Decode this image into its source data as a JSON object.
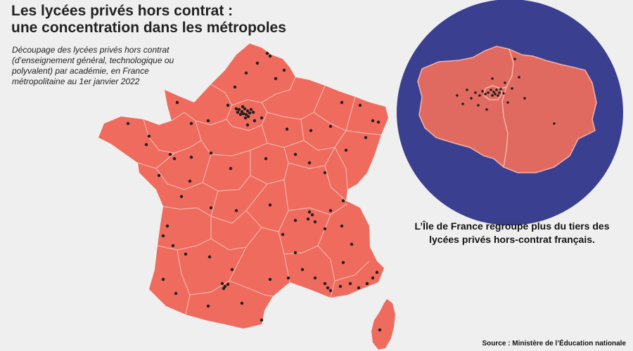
{
  "title_line1": "Les lycées privés hors contrat :",
  "title_line2": "une concentration dans les métropoles",
  "subtitle": "Découpage des lycées privés hors contrat (d’enseignement général, technologique ou polyva­lent) par académie, en France métropolitaine au 1er janvier 2022",
  "callout": "L’Île de France regroupe plus du tiers des lycées privés hors-contrat français.",
  "source": "Source : Ministère de l’Éducation nationale",
  "colors": {
    "land": "#ee6b5e",
    "idf_land": "#e06a5f",
    "inset_ocean": "#3a3f8f",
    "border": "#f6b3aa",
    "dot": "#1f1f1f",
    "background": "#efefef"
  },
  "icons": {
    "school_marker": "dot"
  }
}
